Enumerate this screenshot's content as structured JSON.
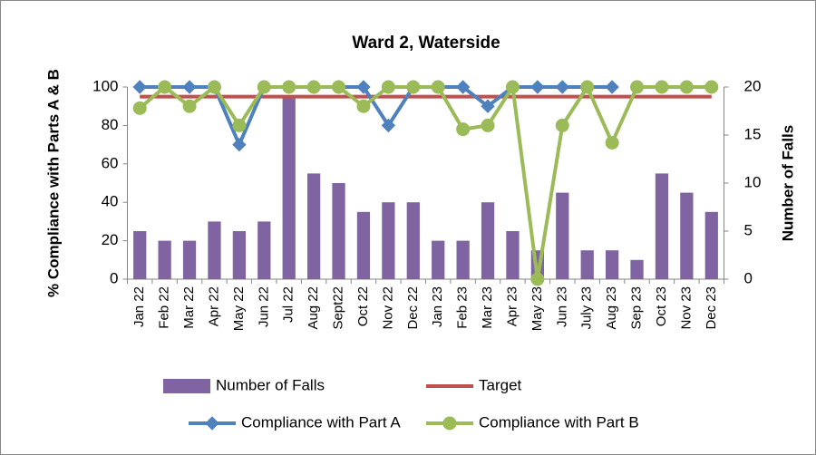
{
  "chart_data": {
    "type": "combo",
    "title": "Ward 2, Waterside",
    "y_label": "% Compliance with Parts A & B",
    "y2_label": "Number of Falls",
    "categories": [
      "Jan 22",
      "Feb 22",
      "Mar 22",
      "Apr 22",
      "May 22",
      "Jun 22",
      "Jul 22",
      "Aug 22",
      "Sept22",
      "Oct 22",
      "Nov 22",
      "Dec 22",
      "Jan 23",
      "Feb 23",
      "Mar 23",
      "Apr 23",
      "May 23",
      "Jun 23",
      "July 23",
      "Aug 23",
      "Sep 23",
      "Oct 23",
      "Nov 23",
      "Dec 23"
    ],
    "ylim": [
      0,
      100
    ],
    "yticks": [
      0,
      20,
      40,
      60,
      80,
      100
    ],
    "y2lim": [
      0,
      20
    ],
    "y2ticks": [
      0,
      5,
      10,
      15,
      20
    ],
    "grid": false,
    "series": [
      {
        "name": "Number of Falls",
        "type": "bar",
        "axis": "y2",
        "color": "#8064a2",
        "values": [
          5,
          4,
          4,
          6,
          5,
          6,
          19,
          11,
          10,
          7,
          8,
          8,
          4,
          4,
          8,
          5,
          3,
          9,
          3,
          3,
          2,
          11,
          9,
          7
        ]
      },
      {
        "name": "Target",
        "type": "line",
        "color": "#c0504d",
        "marker": "none",
        "values": [
          95,
          95,
          95,
          95,
          95,
          95,
          95,
          95,
          95,
          95,
          95,
          95,
          95,
          95,
          95,
          95,
          95,
          95,
          95,
          95,
          95,
          95,
          95,
          95
        ]
      },
      {
        "name": "Compliance with Part A",
        "type": "line",
        "color": "#4f81bd",
        "marker": "diamond",
        "values": [
          100,
          100,
          100,
          100,
          70,
          100,
          100,
          100,
          100,
          100,
          80,
          100,
          100,
          100,
          90,
          100,
          100,
          100,
          100,
          100,
          null,
          null,
          null,
          null
        ]
      },
      {
        "name": "Compliance with Part B",
        "type": "line",
        "color": "#9bbb59",
        "marker": "circle",
        "values": [
          89,
          100,
          90,
          100,
          80,
          100,
          100,
          100,
          100,
          90,
          100,
          100,
          100,
          78,
          80,
          100,
          0,
          80,
          100,
          71,
          100,
          100,
          100,
          100
        ]
      }
    ]
  }
}
